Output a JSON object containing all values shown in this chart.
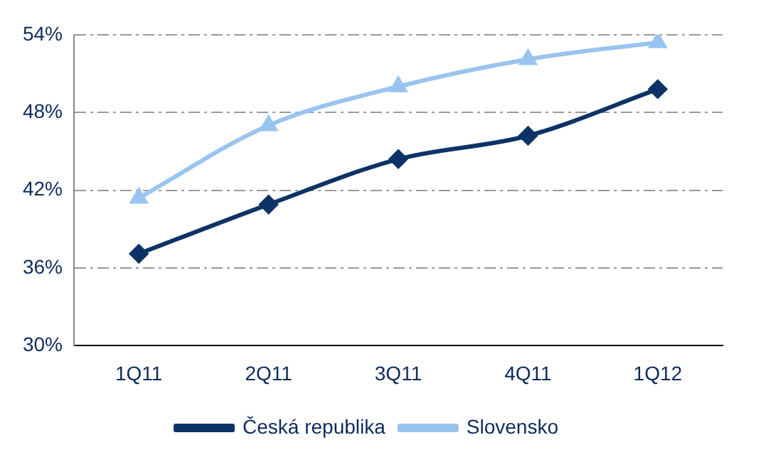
{
  "chart_data": {
    "type": "line",
    "categories": [
      "1Q11",
      "2Q11",
      "3Q11",
      "4Q11",
      "1Q12"
    ],
    "series": [
      {
        "name": "Česká republika",
        "color": "#0d3366",
        "marker": "diamond",
        "values": [
          37.1,
          40.9,
          44.4,
          46.2,
          49.8
        ]
      },
      {
        "name": "Slovensko",
        "color": "#99c4f0",
        "marker": "triangle",
        "values": [
          41.4,
          47.0,
          50.0,
          52.1,
          53.4
        ]
      }
    ],
    "ylim": [
      30,
      54
    ],
    "yticks": [
      {
        "value": 30,
        "label": "30%"
      },
      {
        "value": 36,
        "label": "36%"
      },
      {
        "value": 42,
        "label": "42%"
      },
      {
        "value": 48,
        "label": "48%"
      },
      {
        "value": 54,
        "label": "54%"
      }
    ],
    "grid": "y",
    "legend": "bottom"
  }
}
